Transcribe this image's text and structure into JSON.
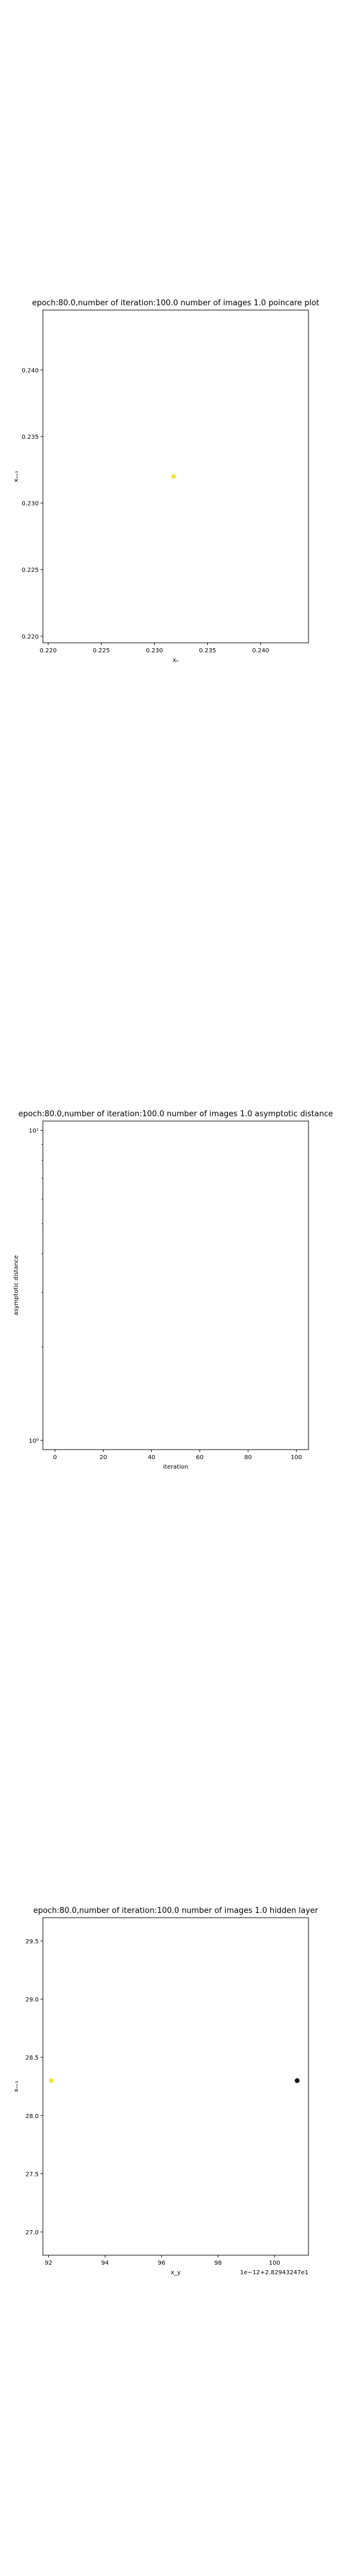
{
  "chart_data": [
    {
      "type": "scatter",
      "title": "epoch:80.0,number of iteration:100.0 number of images 1.0 poincare plot",
      "xlabel": "xₙ",
      "ylabel": "xₙ₊₁",
      "xlim": [
        0.2195,
        0.2445
      ],
      "ylim": [
        0.2195,
        0.2445
      ],
      "x_ticks": [
        0.22,
        0.225,
        0.23,
        0.235,
        0.24
      ],
      "y_ticks": [
        0.22,
        0.225,
        0.23,
        0.235,
        0.24
      ],
      "x_tick_labels": [
        "0.220",
        "0.225",
        "0.230",
        "0.235",
        "0.240"
      ],
      "y_tick_labels": [
        "0.220",
        "0.225",
        "0.230",
        "0.235",
        "0.240"
      ],
      "y_scale": "linear",
      "grid": false,
      "points": [
        {
          "x": 0.2318,
          "y": 0.232,
          "color": "#f0e442"
        }
      ]
    },
    {
      "type": "line",
      "title": "epoch:80.0,number of iteration:100.0  number of images 1.0 asymptotic distance",
      "xlabel": "iteration",
      "ylabel": "asymptotic distance",
      "xlim": [
        -5,
        105
      ],
      "ylim": [
        1,
        10
      ],
      "x_ticks": [
        0,
        20,
        40,
        60,
        80,
        100
      ],
      "x_tick_labels": [
        "0",
        "20",
        "40",
        "60",
        "80",
        "100"
      ],
      "y_ticks": [
        1,
        10
      ],
      "y_tick_labels": [
        "10⁰",
        "10¹"
      ],
      "y_scale": "log",
      "grid": false,
      "series": []
    },
    {
      "type": "scatter",
      "title": "epoch:80.0,number of iteration:100.0  number of images 1.0 hidden layer",
      "xlabel": "x_y",
      "ylabel": "xₙ₊₁",
      "offset_text": "1e−12+2.82943247e1",
      "xlim": [
        91.8,
        101.2
      ],
      "ylim": [
        26.8,
        29.7
      ],
      "x_ticks": [
        92,
        94,
        96,
        98,
        100
      ],
      "x_tick_labels": [
        "92",
        "94",
        "96",
        "98",
        "100"
      ],
      "y_ticks": [
        27.0,
        27.5,
        28.0,
        28.5,
        29.0,
        29.5
      ],
      "y_tick_labels": [
        "27.0",
        "27.5",
        "28.0",
        "28.5",
        "29.0",
        "29.5"
      ],
      "y_scale": "linear",
      "grid": false,
      "points": [
        {
          "x": 92.1,
          "y": 28.3,
          "color": "#f0e442"
        },
        {
          "x": 100.8,
          "y": 28.3,
          "color": "#111111"
        }
      ]
    }
  ]
}
